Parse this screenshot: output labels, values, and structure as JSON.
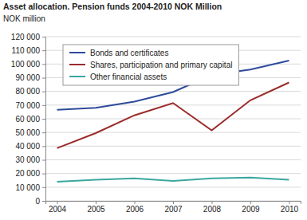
{
  "chart_data": {
    "type": "line",
    "title": "Asset allocation. Pension funds 2004-2010 NOK Million",
    "ylabel": "NOK million",
    "categories": [
      "2004",
      "2005",
      "2006",
      "2007",
      "2008",
      "2009",
      "2010"
    ],
    "series": [
      {
        "name": "Bonds and certificates",
        "color": "#2e4b9a",
        "values": [
          66500,
          68000,
          72500,
          79500,
          92000,
          96000,
          102500
        ]
      },
      {
        "name": "Shares, participation and primary capital",
        "color": "#9b2b2b",
        "values": [
          38500,
          49500,
          62500,
          71500,
          51500,
          73500,
          86500
        ]
      },
      {
        "name": "Other financial assets",
        "color": "#3aa7a0",
        "values": [
          14000,
          15500,
          16500,
          14500,
          16500,
          17000,
          15500
        ]
      }
    ],
    "ylim": [
      0,
      120000
    ],
    "yticks": [
      0,
      {
        "value": 10000,
        "label": "10 000"
      },
      {
        "value": 20000,
        "label": "20 000"
      },
      {
        "value": 30000,
        "label": "30 000"
      },
      {
        "value": 40000,
        "label": "40 000"
      },
      {
        "value": 50000,
        "label": "50 000"
      },
      {
        "value": 60000,
        "label": "60 000"
      },
      {
        "value": 70000,
        "label": "70 000"
      },
      {
        "value": 80000,
        "label": "80 000"
      },
      {
        "value": 90000,
        "label": "90 000"
      },
      {
        "value": 100000,
        "label": "100 000"
      },
      {
        "value": 110000,
        "label": "110 000"
      },
      {
        "value": 120000,
        "label": "120 000"
      }
    ],
    "grid": true,
    "legend": "upper left"
  }
}
